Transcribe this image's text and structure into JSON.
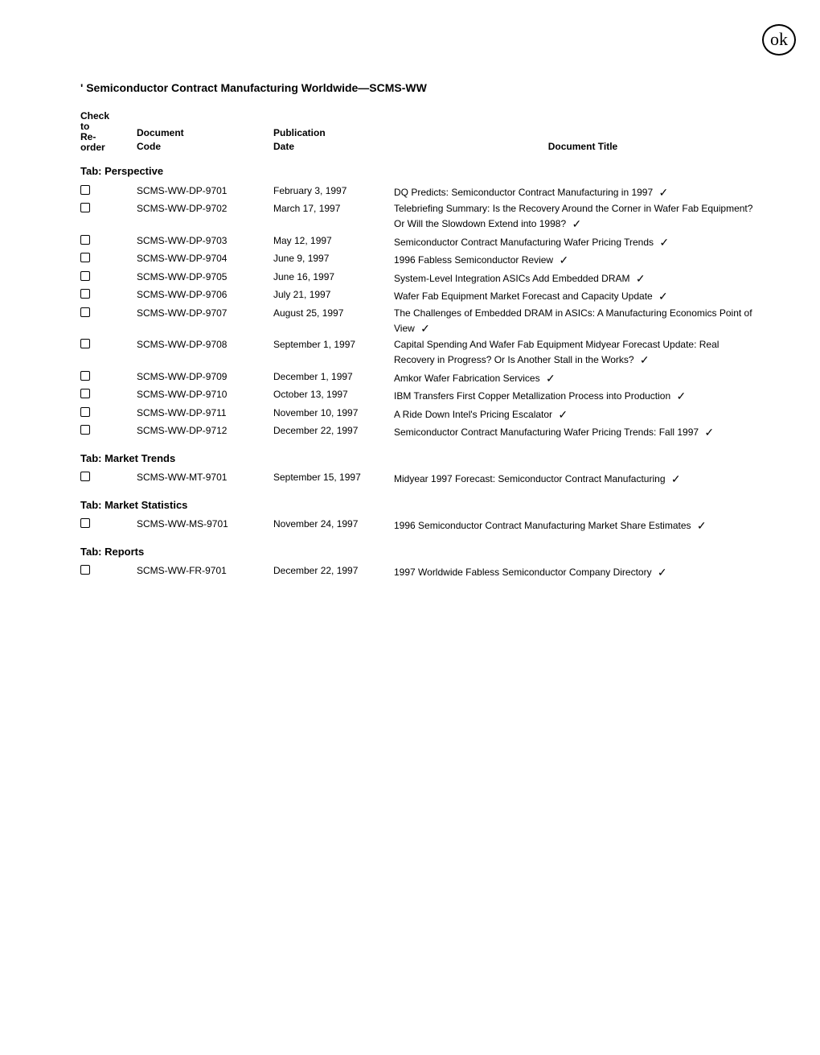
{
  "topMark": "ok",
  "pageTitle": "' Semiconductor Contract Manufacturing Worldwide—SCMS-WW",
  "headers": {
    "col1a": "Check",
    "col1b": "to",
    "col1c": "Re-",
    "col1d": "order",
    "col2a": "Document",
    "col2b": "Code",
    "col3a": "Publication",
    "col3b": "Date",
    "col4": "Document Title"
  },
  "sections": [
    {
      "heading": "Tab: Perspective",
      "rows": [
        {
          "code": "SCMS-WW-DP-9701",
          "date": "February 3, 1997",
          "title": "DQ Predicts: Semiconductor Contract Manufacturing in 1997",
          "mark": "✓"
        },
        {
          "code": "SCMS-WW-DP-9702",
          "date": "March 17, 1997",
          "title": "Telebriefing Summary: Is the Recovery Around the Corner in Wafer Fab Equipment? Or Will the Slowdown Extend into 1998?",
          "mark": "✓"
        },
        {
          "code": "SCMS-WW-DP-9703",
          "date": "May 12, 1997",
          "title": "Semiconductor Contract Manufacturing Wafer Pricing Trends",
          "mark": "✓"
        },
        {
          "code": "SCMS-WW-DP-9704",
          "date": "June 9, 1997",
          "title": "1996 Fabless Semiconductor Review",
          "mark": "✓"
        },
        {
          "code": "SCMS-WW-DP-9705",
          "date": "June 16, 1997",
          "title": "System-Level Integration ASICs Add Embedded DRAM",
          "mark": "✓"
        },
        {
          "code": "SCMS-WW-DP-9706",
          "date": "July 21, 1997",
          "title": "Wafer Fab Equipment Market Forecast and Capacity Update",
          "mark": "✓"
        },
        {
          "code": "SCMS-WW-DP-9707",
          "date": "August 25, 1997",
          "title": "The Challenges of Embedded DRAM in ASICs:  A Manufacturing Economics Point of View",
          "mark": "✓"
        },
        {
          "code": "SCMS-WW-DP-9708",
          "date": "September 1, 1997",
          "title": "Capital Spending And Wafer Fab Equipment Midyear Forecast Update: Real Recovery in Progress?  Or Is Another Stall in the Works?",
          "mark": "✓"
        },
        {
          "code": "SCMS-WW-DP-9709",
          "date": "December 1, 1997",
          "title": "Amkor Wafer Fabrication Services",
          "mark": "✓"
        },
        {
          "code": "SCMS-WW-DP-9710",
          "date": "October 13, 1997",
          "title": "IBM Transfers First Copper Metallization Process into Production",
          "mark": "✓"
        },
        {
          "code": "SCMS-WW-DP-9711",
          "date": "November 10, 1997",
          "title": "A Ride Down Intel's Pricing Escalator",
          "mark": "✓"
        },
        {
          "code": "SCMS-WW-DP-9712",
          "date": "December 22, 1997",
          "title": "Semiconductor Contract Manufacturing Wafer Pricing Trends:  Fall 1997",
          "mark": "✓"
        }
      ]
    },
    {
      "heading": "Tab: Market Trends",
      "rows": [
        {
          "code": "SCMS-WW-MT-9701",
          "date": "September 15, 1997",
          "title": "Midyear 1997 Forecast:  Semiconductor Contract Manufacturing",
          "mark": "✓"
        }
      ]
    },
    {
      "heading": "Tab: Market Statistics",
      "rows": [
        {
          "code": "SCMS-WW-MS-9701",
          "date": "November 24, 1997",
          "title": "1996 Semiconductor Contract Manufacturing Market Share Estimates",
          "mark": "✓"
        }
      ]
    },
    {
      "heading": "Tab: Reports",
      "rows": [
        {
          "code": "SCMS-WW-FR-9701",
          "date": "December 22, 1997",
          "title": "1997 Worldwide Fabless Semiconductor Company Directory",
          "mark": "✓"
        }
      ]
    }
  ]
}
